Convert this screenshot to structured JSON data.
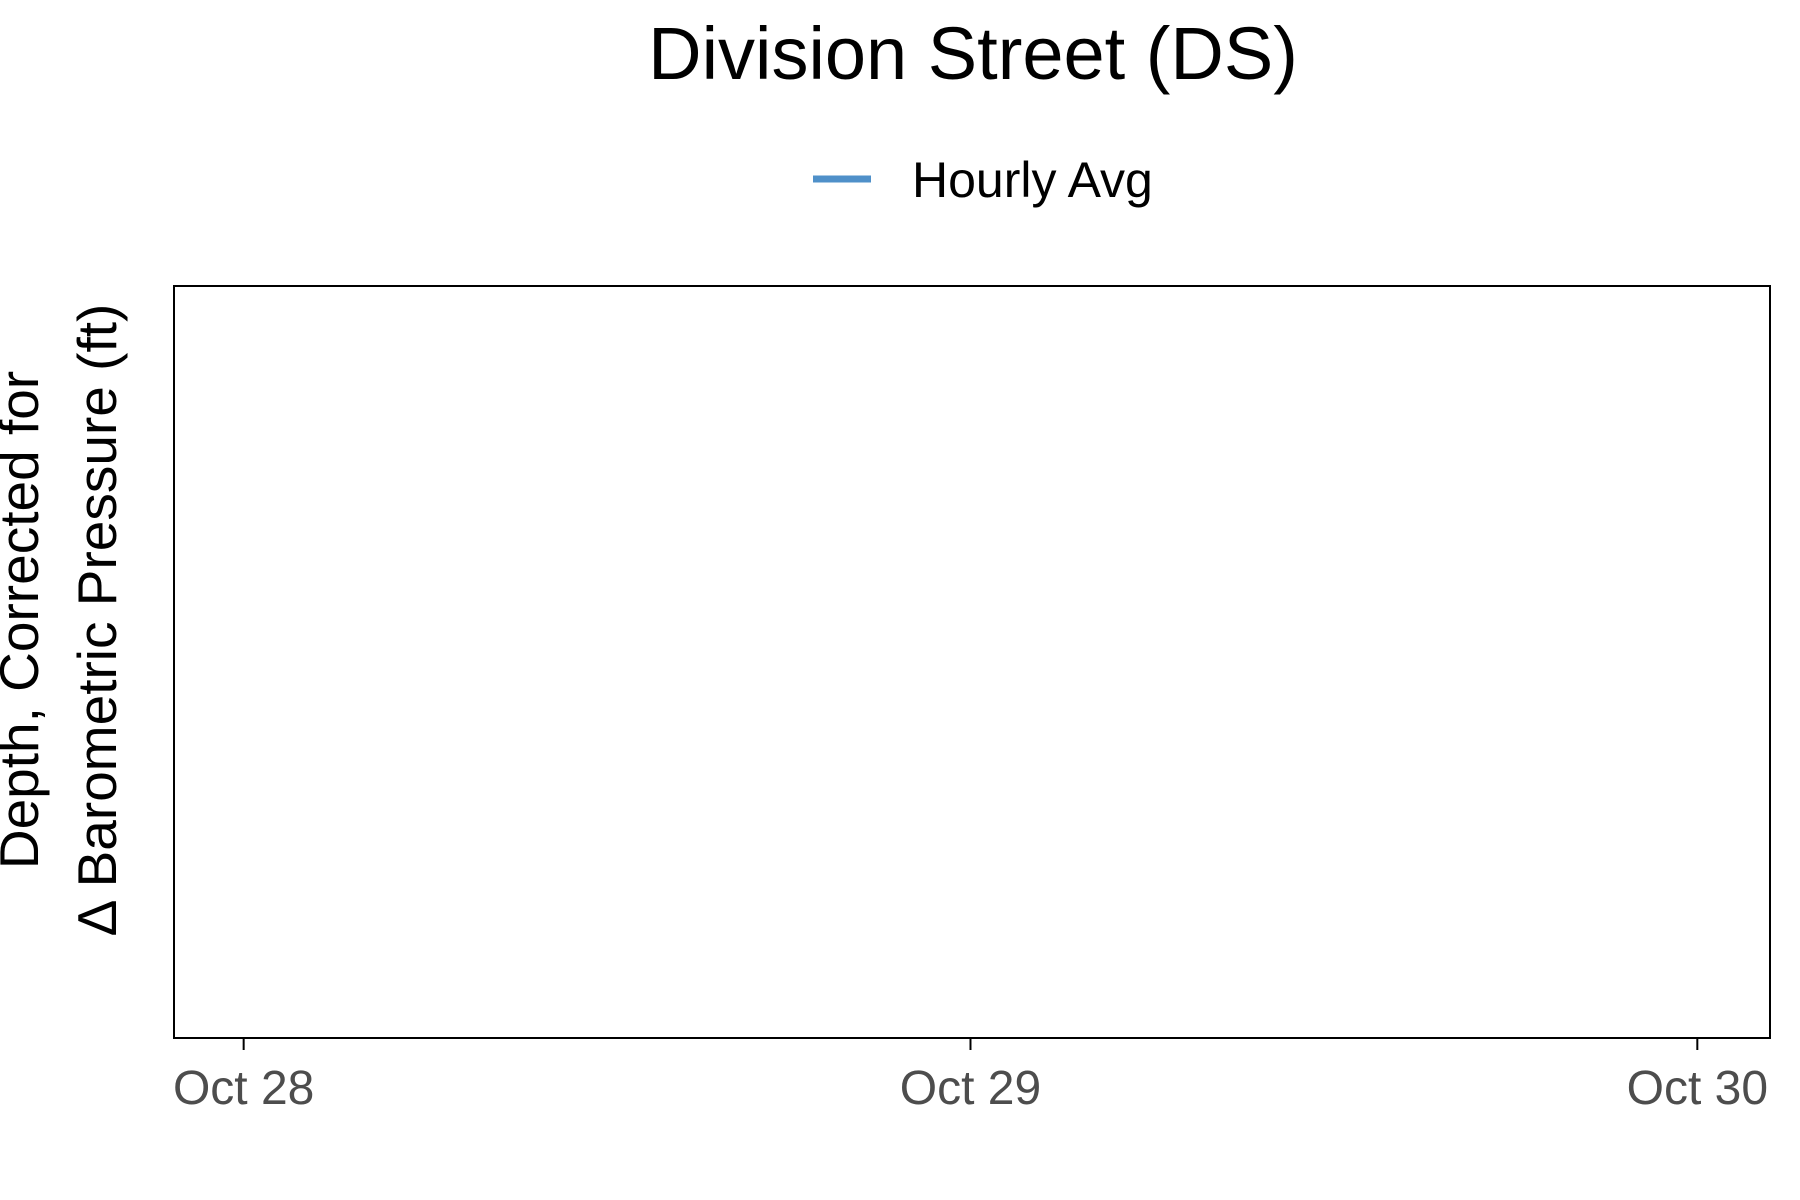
{
  "chart_data": {
    "type": "line",
    "title": "Division Street (DS)",
    "xlabel": "",
    "ylabel_lines": [
      "Depth, Corrected for",
      "Δ Barometric Pressure (ft)"
    ],
    "x_ticks": [
      "Oct 28",
      "Oct 29",
      "Oct 30"
    ],
    "x_domain": [
      "2023-10-27 21:42",
      "2023-10-30 02:24"
    ],
    "series": [
      {
        "name": "Hourly Avg",
        "color": "#4f90c9",
        "x": [],
        "y": []
      }
    ],
    "legend_position": "top",
    "grid": false
  }
}
